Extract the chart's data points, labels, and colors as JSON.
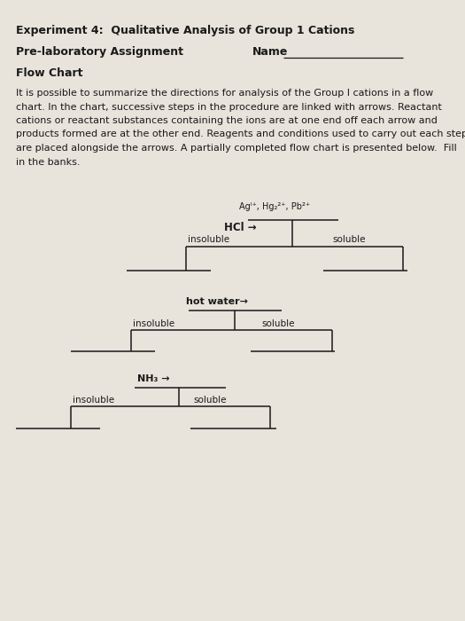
{
  "title1": "Experiment 4:  Qualitative Analysis of Group 1 Cations",
  "title2": "Pre-laboratory Assignment",
  "title3": "Name",
  "title4": "Flow Chart",
  "body_text": "It is possible to summarize the directions for analysis of the Group I cations in a flow\nchart. In the chart, successive steps in the procedure are linked with arrows. Reactant\ncations or reactant substances containing the ions are at one end off each arrow and\nproducts formed are at the other end. Reagents and conditions used to carry out each step\nare placed alongside the arrows. A partially completed flow chart is presented below.  Fill\nin the banks.",
  "bg_color": "#e8e3db",
  "text_color": "#1a1a1a",
  "line_color": "#1a1a1a",
  "node1_label": "Agᴵ⁺, Hg₂²⁺, Pb²⁺",
  "reagent1": "HCl →",
  "insoluble1": "insoluble",
  "soluble1": "soluble",
  "reagent2": "hot water→",
  "insoluble2": "insoluble",
  "soluble2": "soluble",
  "reagent3": "NH₃ →",
  "insoluble3": "insoluble",
  "soluble3": "soluble"
}
